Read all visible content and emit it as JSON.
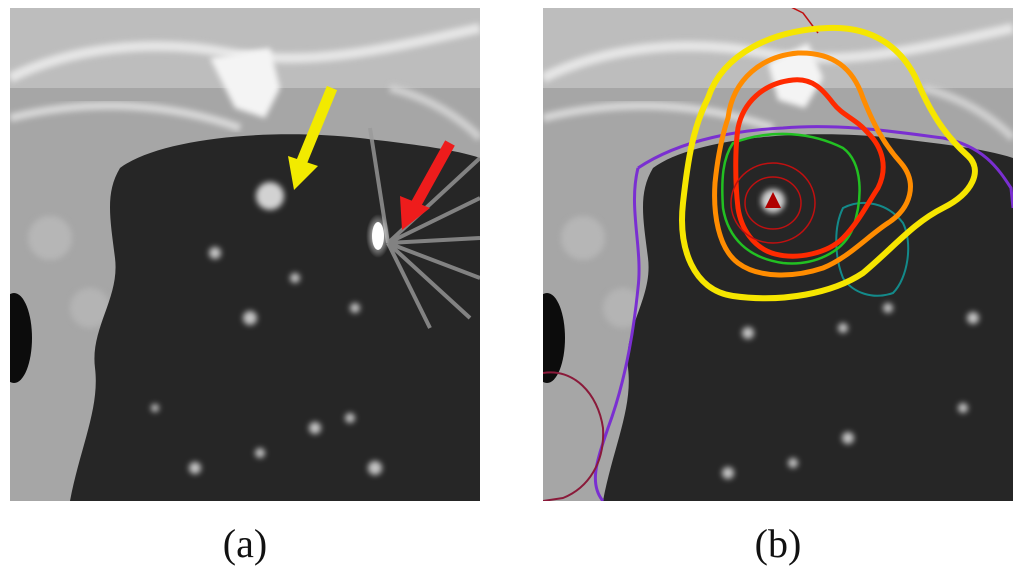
{
  "panels": [
    {
      "id": "a",
      "caption": "(a)"
    },
    {
      "id": "b",
      "caption": "(b)"
    }
  ],
  "colors": {
    "arrow_nodule": "#f2ea00",
    "arrow_artifact": "#ee1c1c",
    "contour_outer": "#f6e600",
    "contour_mid": "#ff8c00",
    "contour_inner": "#ff2a00",
    "contour_core": "#c01010",
    "contour_green": "#22c022",
    "contour_teal": "#138a8a",
    "contour_purple": "#7a2fd1",
    "contour_maroon": "#8a1a3a"
  }
}
